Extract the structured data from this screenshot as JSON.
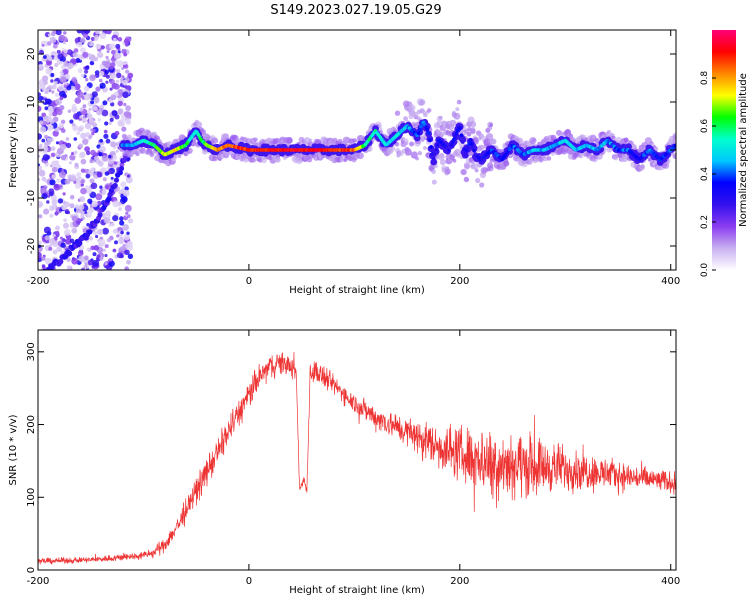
{
  "title": "S149.2023.027.19.05.G29",
  "colors": {
    "snr_line": "#ee3333",
    "frame": "#000000",
    "background": "#ffffff",
    "scatter_purple": "#5511ee",
    "scatter_light": "#c9a8f0"
  },
  "chart_data": [
    {
      "type": "heatmap",
      "title": "S149.2023.027.19.05.G29",
      "xlabel": "Height of straight line (km)",
      "ylabel": "Frequency (Hz)",
      "xlim": [
        -200,
        405
      ],
      "ylim": [
        -25,
        25
      ],
      "xticks": [
        -200,
        0,
        200,
        400
      ],
      "xtick_labels": [
        "-200",
        "0",
        "200",
        "400"
      ],
      "yticks": [
        20,
        10,
        0,
        -10,
        -20
      ],
      "ytick_labels": [
        "20",
        "10",
        "0",
        "-10",
        "-20"
      ],
      "grid": false,
      "colorbar": {
        "label": "Normalized spectral amplitude",
        "range": [
          0,
          1
        ],
        "ticks": [
          0.0,
          0.2,
          0.4,
          0.6,
          0.8
        ],
        "tick_labels": [
          "0.0",
          "0.2",
          "0.4",
          "0.6",
          "0.8"
        ],
        "colormap": [
          "#ffffff",
          "#c8b0f0",
          "#8a3cf0",
          "#3311ee",
          "#0000ff",
          "#00c8ff",
          "#00ffcc",
          "#00ff00",
          "#ffff00",
          "#ff8800",
          "#ff0000",
          "#ff0077"
        ]
      },
      "ridge": {
        "description_x": [
          -118,
          -110,
          -100,
          -90,
          -80,
          -70,
          -60,
          -50,
          -45,
          -40,
          -30,
          -20,
          0,
          20,
          50,
          80,
          100,
          110,
          120,
          130,
          140,
          150,
          160,
          165,
          170,
          175,
          180,
          190,
          200,
          205,
          210,
          215,
          220,
          230,
          240,
          250,
          260,
          270,
          280,
          290,
          300,
          310,
          320,
          330,
          340,
          350,
          360,
          370,
          380,
          390,
          400,
          405
        ],
        "frequency_hz": [
          1,
          1,
          2,
          1,
          -1,
          0,
          1,
          4,
          2,
          1,
          0,
          1,
          0,
          0,
          0,
          0,
          0,
          1,
          4,
          1,
          3,
          5,
          3,
          6,
          4,
          -2,
          2,
          0,
          5,
          -1,
          2,
          -1,
          -2,
          0,
          -2,
          1,
          -1,
          0,
          0,
          1,
          2,
          0,
          1,
          0,
          2,
          0,
          0,
          -2,
          0,
          -2,
          0,
          1
        ],
        "amplitude": [
          0.4,
          0.45,
          0.5,
          0.6,
          0.7,
          0.75,
          0.6,
          0.5,
          0.6,
          0.65,
          0.8,
          0.85,
          0.9,
          0.9,
          0.92,
          0.9,
          0.85,
          0.6,
          0.55,
          0.5,
          0.5,
          0.45,
          0.4,
          0.4,
          0.35,
          0.3,
          0.35,
          0.3,
          0.35,
          0.3,
          0.35,
          0.3,
          0.3,
          0.4,
          0.35,
          0.4,
          0.4,
          0.45,
          0.45,
          0.45,
          0.5,
          0.45,
          0.45,
          0.45,
          0.45,
          0.4,
          0.4,
          0.35,
          0.4,
          0.35,
          0.4,
          0.4
        ]
      },
      "diagonal_trace": {
        "x": [
          -200,
          -185,
          -170,
          -155,
          -140,
          -125,
          -115
        ],
        "frequency_hz": [
          -27,
          -24,
          -21,
          -18,
          -13,
          -6,
          0
        ]
      }
    },
    {
      "type": "line",
      "xlabel": "Height of straight line (km)",
      "ylabel": "SNR (10 * v/v)",
      "xlim": [
        -200,
        405
      ],
      "ylim": [
        0,
        330
      ],
      "xticks": [
        -200,
        0,
        200,
        400
      ],
      "xtick_labels": [
        "-200",
        "0",
        "200",
        "400"
      ],
      "yticks": [
        0,
        100,
        200,
        300
      ],
      "ytick_labels": [
        "0",
        "100",
        "200",
        "300"
      ],
      "grid": false,
      "envelope": {
        "x": [
          -200,
          -150,
          -100,
          -90,
          -80,
          -70,
          -60,
          -50,
          -40,
          -30,
          -20,
          -10,
          0,
          10,
          20,
          30,
          40,
          45,
          48,
          52,
          55,
          58,
          62,
          70,
          80,
          100,
          120,
          150,
          180,
          200,
          230,
          260,
          300,
          350,
          405
        ],
        "mid": [
          12,
          14,
          20,
          24,
          35,
          55,
          80,
          110,
          135,
          160,
          190,
          215,
          240,
          265,
          280,
          285,
          280,
          270,
          110,
          125,
          110,
          270,
          275,
          265,
          255,
          230,
          210,
          190,
          170,
          160,
          150,
          145,
          140,
          130,
          120
        ],
        "spread": [
          6,
          6,
          8,
          10,
          15,
          20,
          25,
          25,
          30,
          30,
          30,
          30,
          30,
          25,
          25,
          25,
          20,
          20,
          10,
          10,
          10,
          25,
          25,
          25,
          20,
          20,
          25,
          30,
          45,
          55,
          70,
          65,
          45,
          30,
          20
        ]
      }
    }
  ]
}
